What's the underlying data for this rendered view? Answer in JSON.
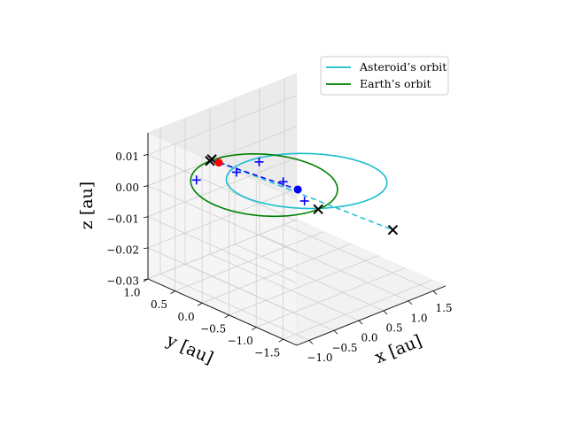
{
  "chart_data": {
    "type": "line",
    "projection": "3d",
    "xlabel": "x [au]",
    "ylabel": "y [au]",
    "zlabel": "z [au]",
    "xlim": [
      -1.25,
      1.75
    ],
    "ylim": [
      -1.75,
      1.0
    ],
    "zlim": [
      -0.03,
      0.017
    ],
    "x_ticks": [
      "−1.0",
      "−0.5",
      "0.0",
      "0.5",
      "1.0",
      "1.5"
    ],
    "x_tick_values": [
      -1.0,
      -0.5,
      0.0,
      0.5,
      1.0,
      1.5
    ],
    "y_ticks": [
      "1.0",
      "0.5",
      "0.0",
      "−0.5",
      "−1.0",
      "−1.5"
    ],
    "y_tick_values": [
      1.0,
      0.5,
      0.0,
      -0.5,
      -1.0,
      -1.5
    ],
    "z_ticks": [
      "0.01",
      "0.00",
      "−0.01",
      "−0.02",
      "−0.03"
    ],
    "z_tick_values": [
      0.01,
      0.0,
      -0.01,
      -0.02,
      -0.03
    ],
    "grid": true,
    "legend_position": "upper-right",
    "series": [
      {
        "name": "Asteroid’s orbit",
        "color": "#17becf",
        "style": "solid",
        "orbit": {
          "a": 1.12,
          "e": 0.56,
          "omega_deg": 35,
          "inclination_deg": 0.75,
          "node_deg": 120
        }
      },
      {
        "name": "Earth’s orbit",
        "color": "#008000",
        "style": "solid",
        "orbit": {
          "a": 1.0,
          "e": 0.0,
          "omega_deg": 0,
          "inclination_deg": 0.0,
          "node_deg": 0
        }
      }
    ],
    "dashed_lines": [
      {
        "color": "#17becf",
        "from": [
          -0.42,
          0.58,
          0.0065
        ],
        "to": [
          1.45,
          -1.05,
          -0.0155
        ]
      },
      {
        "color": "#0000ff",
        "from": [
          -0.28,
          0.58,
          0.0045
        ],
        "to": [
          0.44,
          -0.22,
          -0.0025
        ]
      }
    ],
    "points": [
      {
        "name": "x-marker",
        "marker": "x",
        "color": "#000000",
        "coords": [
          -0.42,
          0.58,
          0.0065
        ]
      },
      {
        "name": "x-marker",
        "marker": "x",
        "color": "#000000",
        "coords": [
          1.45,
          -1.05,
          -0.0155
        ]
      },
      {
        "name": "x-marker",
        "marker": "x",
        "color": "#000000",
        "coords": [
          0.0,
          1.0,
          0.0
        ]
      },
      {
        "name": "x-marker",
        "marker": "x",
        "color": "#000000",
        "coords": [
          0.0,
          -1.0,
          0.0
        ]
      },
      {
        "name": "dot",
        "marker": "dot",
        "color": "#ff0000",
        "coords": [
          -0.28,
          0.58,
          0.0045
        ]
      },
      {
        "name": "dot",
        "marker": "dot",
        "color": "#0000ff",
        "coords": [
          0.44,
          -0.22,
          -0.0025
        ]
      },
      {
        "name": "plus-marker",
        "marker": "+",
        "color": "#0000ff",
        "coords": [
          -0.12,
          0.4,
          0.0018
        ]
      },
      {
        "name": "plus-marker",
        "marker": "+",
        "color": "#0000ff",
        "coords": [
          0.32,
          -0.06,
          -0.0005
        ]
      },
      {
        "name": "plus-marker",
        "marker": "+",
        "color": "#0000ff",
        "coords": [
          -0.6,
          0.7,
          0.0
        ]
      },
      {
        "name": "plus-marker",
        "marker": "+",
        "color": "#0000ff",
        "coords": [
          0.5,
          0.55,
          0.0
        ]
      },
      {
        "name": "plus-marker",
        "marker": "+",
        "color": "#0000ff",
        "coords": [
          0.05,
          -0.7,
          0.0
        ]
      }
    ]
  }
}
